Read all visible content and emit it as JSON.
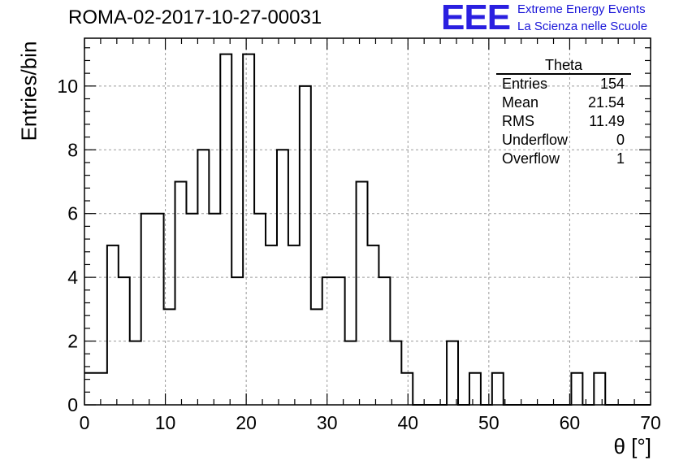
{
  "title": "ROMA-02-2017-10-27-00031",
  "logo": {
    "mark": "EEE",
    "line1": "Extreme Energy Events",
    "line2": "La Scienza nelle Scuole",
    "color": "#2a1fe0"
  },
  "stats_box": {
    "title": "Theta",
    "rows": [
      {
        "label": "Entries",
        "value": "154"
      },
      {
        "label": "Mean",
        "value": "21.54"
      },
      {
        "label": "RMS",
        "value": "11.49"
      },
      {
        "label": "Underflow",
        "value": "0"
      },
      {
        "label": "Overflow",
        "value": "1"
      }
    ]
  },
  "chart_data": {
    "type": "bar",
    "style": "step-histogram",
    "title": "ROMA-02-2017-10-27-00031",
    "xlabel": "θ [°]",
    "ylabel": "Entries/bin",
    "xlim": [
      0,
      70
    ],
    "ylim": [
      0,
      11.5
    ],
    "grid": true,
    "bin_width": 1.4,
    "bin_edges_start": 0,
    "values": [
      1,
      1,
      5,
      4,
      2,
      6,
      6,
      3,
      7,
      6,
      8,
      6,
      11,
      4,
      11,
      6,
      5,
      8,
      5,
      10,
      3,
      4,
      4,
      2,
      7,
      5,
      4,
      2,
      1,
      0,
      0,
      0,
      2,
      0,
      1,
      0,
      1,
      0,
      0,
      0,
      0,
      0,
      0,
      1,
      0,
      1,
      0,
      0,
      0,
      0
    ],
    "xticks": [
      "0",
      "10",
      "20",
      "30",
      "40",
      "50",
      "60",
      "70"
    ],
    "yticks": [
      "0",
      "2",
      "4",
      "6",
      "8",
      "10"
    ],
    "line_color": "#000000",
    "grid_color": "#9a9a9a"
  }
}
